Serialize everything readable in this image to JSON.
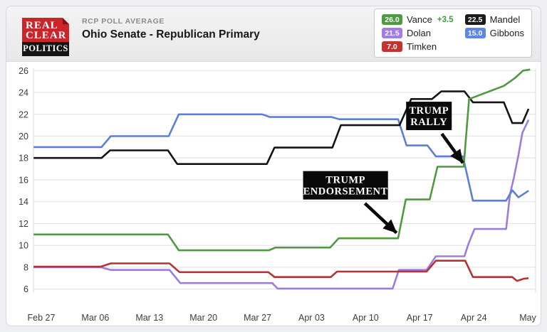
{
  "header": {
    "logo": {
      "line1": "REAL",
      "line2": "CLEAR",
      "line3": "POLITICS"
    },
    "kicker": "RCP POLL AVERAGE",
    "title": "Ohio Senate - Republican Primary"
  },
  "legend": {
    "items": [
      {
        "name": "Vance",
        "value": "26.0",
        "delta": "+3.5",
        "delta_color": "#3f9a3f",
        "color": "#4d9a41"
      },
      {
        "name": "Mandel",
        "value": "22.5",
        "color": "#1b1b1b"
      },
      {
        "name": "Dolan",
        "value": "21.5",
        "color": "#a07ee6"
      },
      {
        "name": "Gibbons",
        "value": "15.0",
        "color": "#5c86e8"
      },
      {
        "name": "Timken",
        "value": "7.0",
        "color": "#c53030"
      }
    ]
  },
  "chart_data": {
    "type": "line",
    "title": "Ohio Senate - Republican Primary (RCP Poll Average)",
    "x_axis": {
      "unit": "days since Feb 27",
      "tick_days": [
        0,
        7,
        14,
        21,
        28,
        35,
        42,
        49,
        56,
        63
      ],
      "tick_labels": [
        "Feb 27",
        "Mar 06",
        "Mar 13",
        "Mar 20",
        "Mar 27",
        "Apr 03",
        "Apr 10",
        "Apr 17",
        "Apr 24",
        "May"
      ]
    },
    "y_axis": {
      "min": 6,
      "max": 26,
      "ticks": [
        26,
        24,
        22,
        20,
        18,
        16,
        14,
        12,
        10,
        8,
        6
      ]
    },
    "grid": "horizontal",
    "series": [
      {
        "name": "Dolan",
        "color": "#9b7ce0",
        "points": [
          [
            -1,
            8.0
          ],
          [
            7.7,
            8.0
          ],
          [
            9.0,
            7.75
          ],
          [
            16.6,
            7.75
          ],
          [
            18.0,
            6.55
          ],
          [
            29.9,
            6.55
          ],
          [
            30.6,
            6.05
          ],
          [
            45.5,
            6.05
          ],
          [
            46.3,
            7.75
          ],
          [
            49.9,
            7.75
          ],
          [
            51.1,
            9.0
          ],
          [
            54.8,
            9.0
          ],
          [
            55.3,
            10.1
          ],
          [
            56.1,
            11.5
          ],
          [
            60.2,
            11.5
          ],
          [
            60.7,
            14.7
          ],
          [
            61.2,
            16.2
          ],
          [
            61.8,
            18.3
          ],
          [
            62.3,
            20.3
          ],
          [
            63.1,
            21.5
          ]
        ]
      },
      {
        "name": "Timken",
        "color": "#b23434",
        "points": [
          [
            -1,
            8.05
          ],
          [
            7.7,
            8.05
          ],
          [
            9.0,
            8.35
          ],
          [
            16.6,
            8.35
          ],
          [
            17.9,
            7.55
          ],
          [
            29.4,
            7.55
          ],
          [
            30.2,
            7.1
          ],
          [
            37.5,
            7.1
          ],
          [
            38.3,
            7.6
          ],
          [
            49.9,
            7.6
          ],
          [
            51.1,
            8.6
          ],
          [
            54.9,
            8.6
          ],
          [
            55.9,
            7.1
          ],
          [
            61.0,
            7.1
          ],
          [
            61.6,
            6.75
          ],
          [
            62.5,
            6.95
          ],
          [
            63.1,
            7.0
          ]
        ]
      },
      {
        "name": "Gibbons",
        "color": "#5b7fd8",
        "points": [
          [
            -1,
            19
          ],
          [
            7.8,
            19
          ],
          [
            9.0,
            20
          ],
          [
            16.5,
            20
          ],
          [
            17.8,
            22
          ],
          [
            28.6,
            22
          ],
          [
            29.6,
            21.75
          ],
          [
            37.6,
            21.75
          ],
          [
            38.6,
            21.55
          ],
          [
            46.2,
            21.55
          ],
          [
            47.3,
            19.15
          ],
          [
            50.0,
            19.15
          ],
          [
            51.1,
            18.15
          ],
          [
            54.6,
            18.15
          ],
          [
            55.9,
            14.1
          ],
          [
            60.2,
            14.1
          ],
          [
            61.0,
            15.05
          ],
          [
            61.8,
            14.4
          ],
          [
            63.1,
            15.0
          ]
        ]
      },
      {
        "name": "Mandel",
        "color": "#141414",
        "points": [
          [
            -1,
            18
          ],
          [
            7.8,
            18
          ],
          [
            8.9,
            18.7
          ],
          [
            16.4,
            18.7
          ],
          [
            17.6,
            17.45
          ],
          [
            29.2,
            17.45
          ],
          [
            30.2,
            18.95
          ],
          [
            37.7,
            18.95
          ],
          [
            38.8,
            21.0
          ],
          [
            46.4,
            21.0
          ],
          [
            47.9,
            23.4
          ],
          [
            50.6,
            23.4
          ],
          [
            51.8,
            24.1
          ],
          [
            54.8,
            24.1
          ],
          [
            55.9,
            23.1
          ],
          [
            59.9,
            23.1
          ],
          [
            61.0,
            21.2
          ],
          [
            62.3,
            21.2
          ],
          [
            63.1,
            22.5
          ]
        ]
      },
      {
        "name": "Vance",
        "color": "#4d9a3f",
        "points": [
          [
            -1,
            11
          ],
          [
            16.4,
            11
          ],
          [
            17.8,
            9.55
          ],
          [
            29.5,
            9.55
          ],
          [
            30.3,
            9.8
          ],
          [
            37.4,
            9.8
          ],
          [
            38.5,
            10.65
          ],
          [
            46.2,
            10.65
          ],
          [
            47.2,
            14.2
          ],
          [
            50.3,
            14.2
          ],
          [
            51.3,
            17.2
          ],
          [
            54.7,
            17.2
          ],
          [
            55.4,
            23.4
          ],
          [
            59.9,
            24.6
          ],
          [
            61.3,
            25.3
          ],
          [
            62.4,
            26.0
          ],
          [
            63.3,
            26.1
          ]
        ]
      }
    ],
    "annotations": [
      {
        "lines": [
          "TRUMP",
          "ENDORSEMENT"
        ],
        "box_day": 39.4,
        "box_value": 15.5,
        "tip_day": 46.0,
        "tip_value": 11.15
      },
      {
        "lines": [
          "TRUMP",
          "RALLY"
        ],
        "box_day": 50.2,
        "box_value": 21.85,
        "tip_day": 54.6,
        "tip_value": 17.55
      }
    ]
  }
}
